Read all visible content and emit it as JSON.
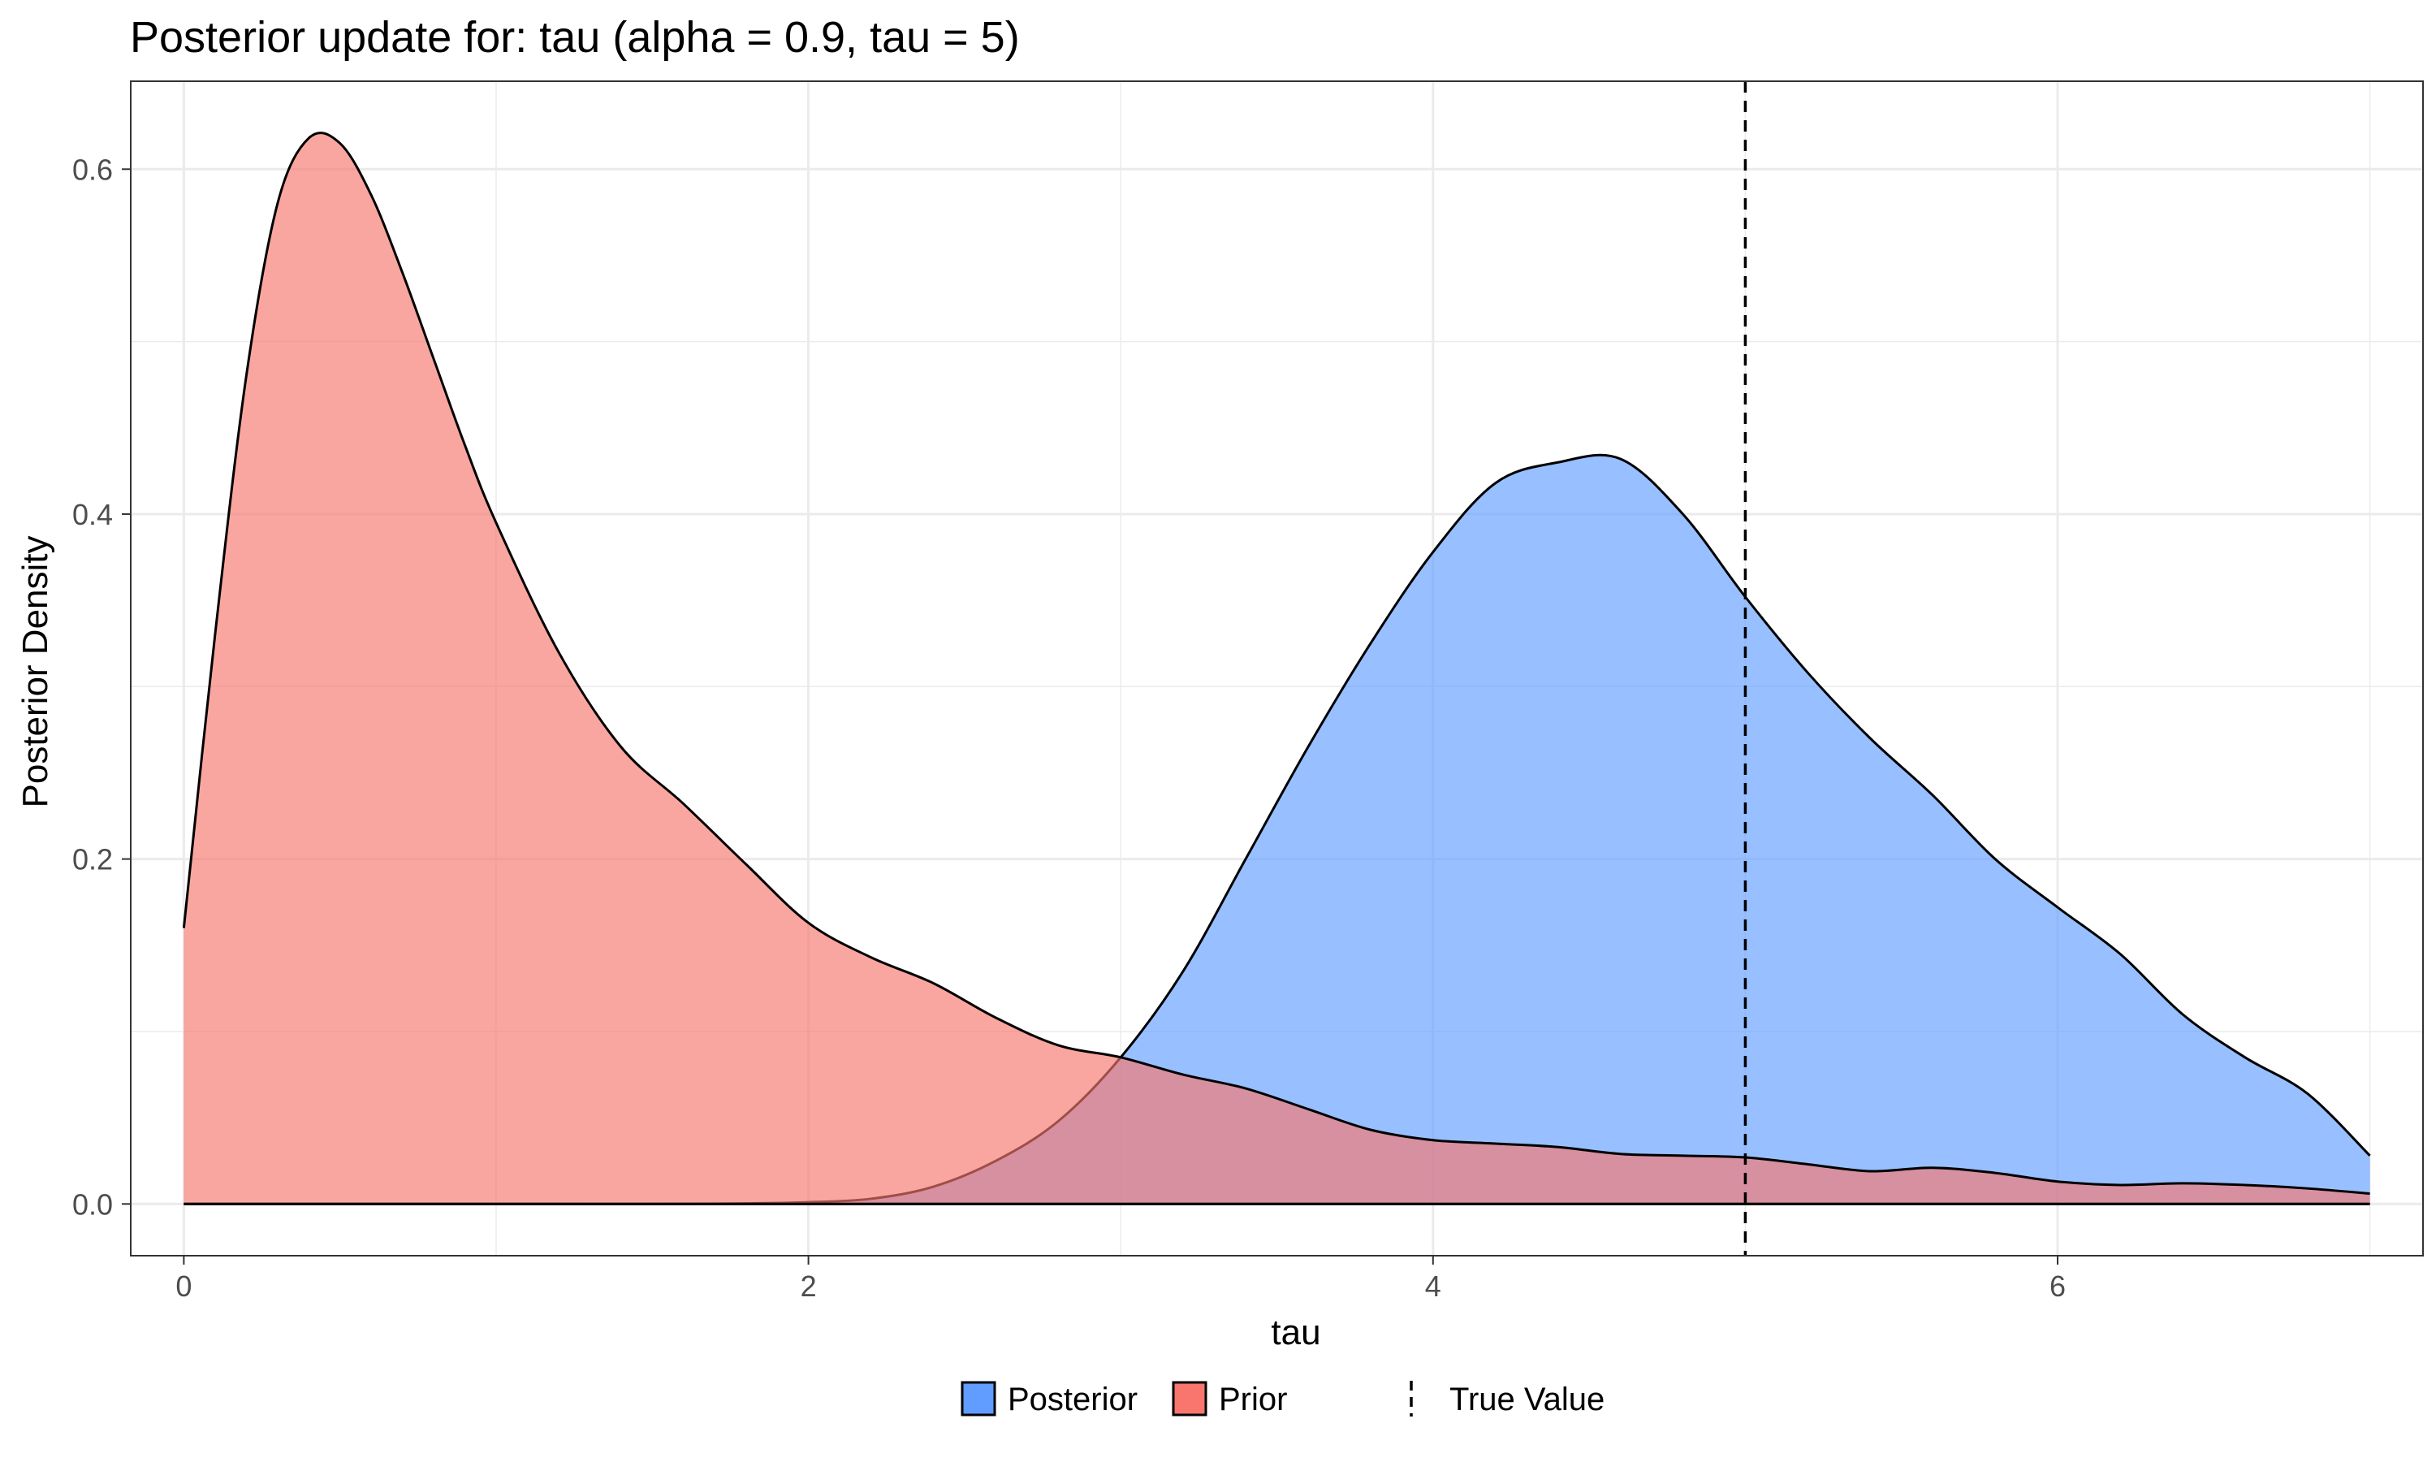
{
  "chart_data": {
    "type": "area",
    "title": "Posterior update for: tau (alpha = 0.9, tau = 5)",
    "xlabel": "tau",
    "ylabel": "Posterior Density",
    "xlim": [
      -0.17,
      7.17
    ],
    "ylim": [
      -0.03,
      0.651
    ],
    "x_ticks": [
      0,
      2,
      4,
      6
    ],
    "y_ticks": [
      0.0,
      0.2,
      0.4,
      0.6
    ],
    "x_tick_labels": [
      "0",
      "2",
      "4",
      "6"
    ],
    "y_tick_labels": [
      "0.0",
      "0.2",
      "0.4",
      "0.6"
    ],
    "grid": true,
    "legend_position": "bottom",
    "true_value": 5,
    "series": [
      {
        "name": "Prior",
        "color": "#F8766D",
        "x": [
          0,
          0.1,
          0.2,
          0.3,
          0.4,
          0.5,
          0.6,
          0.7,
          0.8,
          0.9,
          1.0,
          1.2,
          1.4,
          1.6,
          1.8,
          2.0,
          2.2,
          2.4,
          2.6,
          2.8,
          3.0,
          3.2,
          3.4,
          3.6,
          3.8,
          4.0,
          4.2,
          4.4,
          4.6,
          4.8,
          5.0,
          5.2,
          5.4,
          5.6,
          5.8,
          6.0,
          6.2,
          6.4,
          6.6,
          6.8,
          7.0
        ],
        "values": [
          0.16,
          0.33,
          0.48,
          0.58,
          0.618,
          0.615,
          0.585,
          0.54,
          0.49,
          0.44,
          0.395,
          0.32,
          0.265,
          0.232,
          0.197,
          0.163,
          0.143,
          0.128,
          0.108,
          0.092,
          0.085,
          0.075,
          0.067,
          0.055,
          0.043,
          0.037,
          0.035,
          0.033,
          0.029,
          0.028,
          0.027,
          0.023,
          0.019,
          0.021,
          0.018,
          0.013,
          0.011,
          0.012,
          0.011,
          0.009,
          0.006
        ]
      },
      {
        "name": "Posterior",
        "color": "#619CFF",
        "x": [
          0,
          1.0,
          1.5,
          1.8,
          2.0,
          2.2,
          2.4,
          2.6,
          2.8,
          3.0,
          3.2,
          3.4,
          3.6,
          3.8,
          4.0,
          4.2,
          4.4,
          4.6,
          4.8,
          5.0,
          5.2,
          5.4,
          5.6,
          5.8,
          6.0,
          6.2,
          6.4,
          6.6,
          6.8,
          7.0
        ],
        "values": [
          0,
          0,
          0,
          0.0003,
          0.001,
          0.003,
          0.01,
          0.025,
          0.048,
          0.085,
          0.135,
          0.2,
          0.265,
          0.325,
          0.378,
          0.418,
          0.43,
          0.432,
          0.4,
          0.352,
          0.308,
          0.27,
          0.237,
          0.2,
          0.172,
          0.145,
          0.11,
          0.085,
          0.064,
          0.028
        ]
      }
    ],
    "legend": {
      "fill_entries": [
        "Posterior",
        "Prior"
      ],
      "line_entry": "True Value"
    }
  }
}
